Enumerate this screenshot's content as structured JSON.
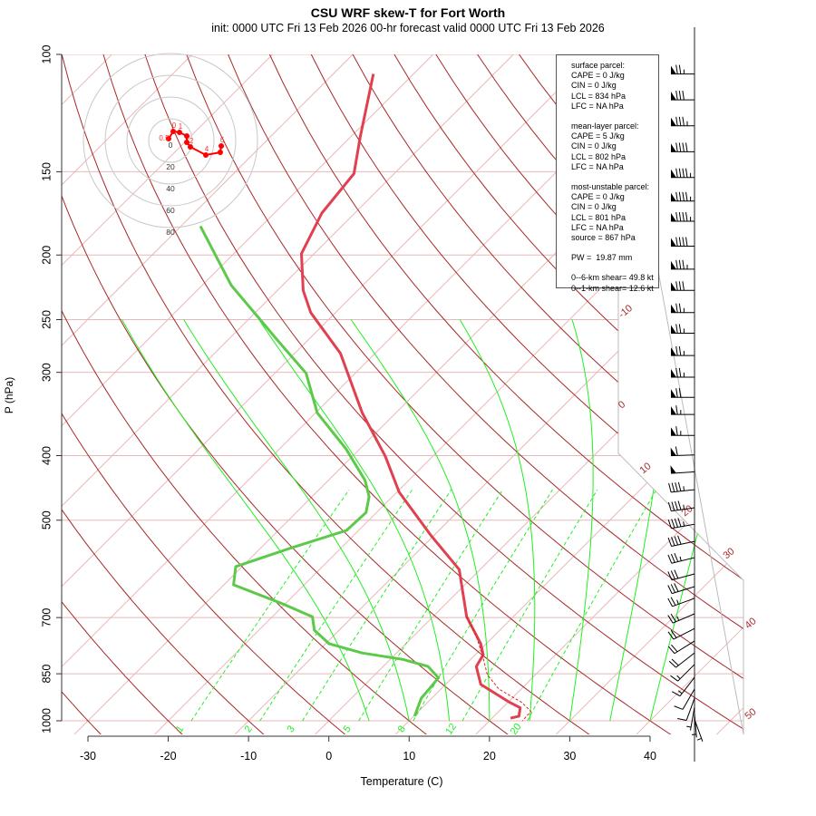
{
  "title": "CSU WRF skew-T for Fort Worth",
  "subtitle": "init: 0000 UTC Fri 13 Feb 2026    00-hr forecast valid 0000 UTC Fri 13 Feb 2026",
  "info_box": {
    "surface": [
      "surface parcel:",
      "CAPE = 0 J/kg",
      "CIN = 0 J/kg",
      "LCL = 834 hPa",
      "LFC = NA hPa"
    ],
    "mean_layer": [
      "mean-layer parcel:",
      "CAPE = 5 J/kg",
      "CIN = 0 J/kg",
      "LCL = 802 hPa",
      "LFC = NA hPa"
    ],
    "most_unstable": [
      "most-unstable parcel:",
      "CAPE = 0 J/kg",
      "CIN = 0 J/kg",
      "LCL = 801 hPa",
      "LFC = NA hPa",
      "source = 867 hPa"
    ],
    "pw": "PW =  19.87 mm",
    "shear": [
      "0--6-km shear= 49.8 kt",
      "0--1-km shear= 12.6 kt"
    ]
  },
  "chart_data": {
    "type": "line",
    "title": "CSU WRF skew-T for Fort Worth",
    "xlabel": "Temperature (C)",
    "ylabel": "P (hPa)",
    "xlim": [
      -33,
      45
    ],
    "ylim": [
      1000,
      100
    ],
    "x_ticks": [
      "-30",
      "-20",
      "-10",
      "0",
      "10",
      "20",
      "30",
      "40"
    ],
    "y_ticks": [
      "100",
      "150",
      "200",
      "250",
      "300",
      "400",
      "500",
      "700",
      "850",
      "1000"
    ],
    "isotherm_labels": [
      "-10",
      "0",
      "10",
      "20",
      "30",
      "40",
      "50"
    ],
    "mixing_ratio_labels": [
      "1",
      "2",
      "3",
      "5",
      "8",
      "12",
      "20"
    ],
    "colors": {
      "temperature": "#e0404f",
      "dewpoint": "#5cc94a",
      "parcel": "#e02020",
      "dry_adiabat": "#a82828",
      "isotherm": "#e8b8b8",
      "moist_adiabat": "#22ee22",
      "mixing_ratio": "#22ee22"
    },
    "series": [
      {
        "name": "temperature",
        "p": [
          107,
          133,
          151,
          173,
          199,
          226,
          244,
          281,
          345,
          401,
          454,
          526,
          593,
          698,
          766,
          796,
          829,
          882,
          938,
          956,
          984,
          991
        ],
        "t": [
          -75.0,
          -68.8,
          -65.0,
          -64.1,
          -61.6,
          -56.8,
          -53.1,
          -44.3,
          -34.2,
          -25.9,
          -19.7,
          -10.5,
          -2.6,
          4.2,
          9.3,
          11.0,
          11.6,
          14.4,
          20.2,
          22.2,
          23.1,
          22.3
        ]
      },
      {
        "name": "dewpoint",
        "p": [
          181,
          222,
          268,
          301,
          345,
          391,
          436,
          461,
          487,
          518,
          551,
          587,
          625,
          666,
          698,
          731,
          766,
          791,
          809,
          829,
          862,
          891,
          925,
          984
        ],
        "t": [
          -77.6,
          -66.4,
          -53.9,
          -46.1,
          -39.8,
          -31.7,
          -25.4,
          -22.9,
          -21.3,
          -21.5,
          -26.3,
          -30.8,
          -28.8,
          -20.6,
          -15.0,
          -13.1,
          -9.6,
          -4.3,
          1.6,
          5.6,
          8.3,
          8.5,
          8.7,
          10.1
        ]
      },
      {
        "name": "virtual-temperature",
        "p": [
          698,
          743,
          798,
          853,
          896,
          938,
          968,
          1000
        ],
        "t": [
          4.2,
          7.6,
          11.0,
          14.0,
          17.2,
          21.7,
          24.0,
          24.1
        ]
      }
    ],
    "winds": {
      "p": [
        107,
        117,
        128,
        140,
        153,
        166,
        178,
        194,
        210,
        226,
        244,
        262,
        283,
        305,
        327,
        347,
        373,
        399,
        423,
        450,
        479,
        507,
        538,
        569,
        602,
        629,
        655,
        691,
        727,
        759,
        791,
        823,
        861,
        896,
        925,
        954,
        977,
        995
      ],
      "spd": [
        75,
        80,
        85,
        90,
        95,
        95,
        95,
        90,
        85,
        80,
        75,
        75,
        75,
        75,
        70,
        65,
        65,
        60,
        50,
        45,
        45,
        45,
        40,
        35,
        30,
        30,
        25,
        25,
        20,
        20,
        20,
        15,
        15,
        10,
        10,
        5,
        5,
        5
      ],
      "dir": [
        270,
        270,
        270,
        270,
        270,
        270,
        270,
        270,
        270,
        270,
        270,
        270,
        270,
        270,
        270,
        270,
        270,
        268,
        266,
        264,
        262,
        260,
        258,
        256,
        255,
        253,
        250,
        247,
        243,
        238,
        232,
        225,
        218,
        210,
        200,
        190,
        175,
        160
      ]
    },
    "hodograph": {
      "ring_labels": [
        "0",
        "20",
        "40",
        "60",
        "80"
      ],
      "u": [
        -1.7,
        2.5,
        8.3,
        15,
        15,
        18.3,
        32.5,
        45.8,
        46.7
      ],
      "v": [
        1.7,
        8.3,
        7.5,
        4.2,
        -1.7,
        -5.8,
        -13.3,
        -10.8,
        -5
      ],
      "height_labels": [
        {
          "text": "0.5",
          "i": 0
        },
        {
          "text": "0",
          "i": 1
        },
        {
          "text": "1",
          "i": 2
        },
        {
          "text": "2",
          "i": 5
        },
        {
          "text": "4",
          "i": 6
        },
        {
          "text": "6",
          "i": 8
        }
      ]
    }
  }
}
